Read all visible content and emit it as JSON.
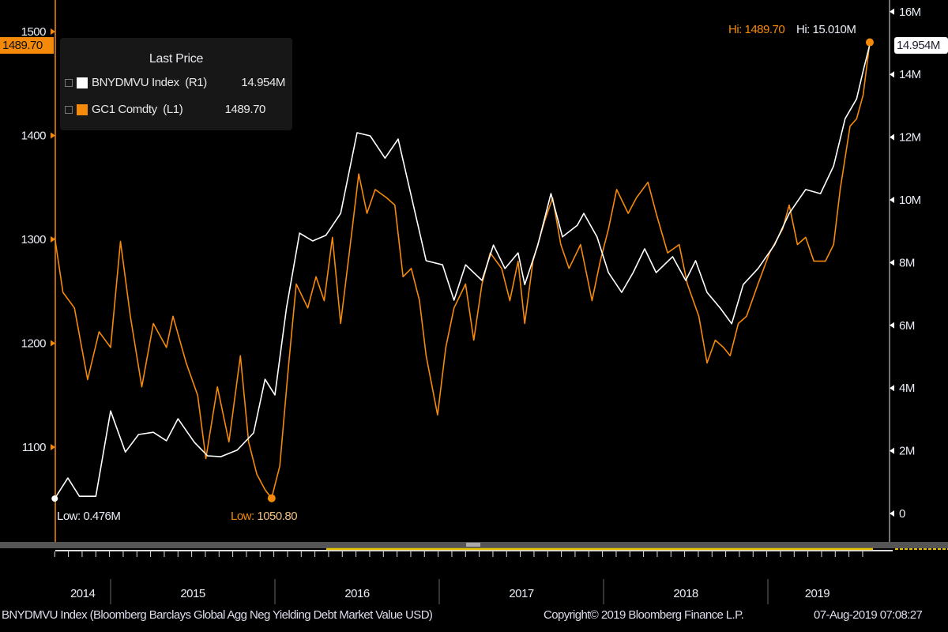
{
  "chart_data": {
    "type": "line",
    "legend": {
      "title": "Last Price",
      "placement": "top-left",
      "entries": [
        {
          "name": "BNYDMVU Index",
          "axis": "(R1)",
          "last": "14.954M",
          "color": "#ffffff"
        },
        {
          "name": "GC1 Comdty",
          "axis": "(L1)",
          "last": "1489.70",
          "color": "#f58a0a"
        }
      ]
    },
    "left_axis": {
      "ticks": [
        "1100",
        "1200",
        "1300",
        "1400",
        "1500"
      ],
      "tick_values": [
        1100,
        1200,
        1300,
        1400,
        1500
      ],
      "range": [
        1000,
        1530
      ],
      "color": "#f58a0a"
    },
    "right_axis": {
      "ticks": [
        "0",
        "2M",
        "4M",
        "6M",
        "8M",
        "10M",
        "12M",
        "14M",
        "16M"
      ],
      "tick_values": [
        0,
        2,
        4,
        6,
        8,
        10,
        12,
        14,
        16
      ],
      "range": [
        -1,
        16.5
      ],
      "unit": "M USD"
    },
    "x_axis": {
      "labels": [
        "2014",
        "2015",
        "2016",
        "2017",
        "2018",
        "2019"
      ],
      "label_positions": [
        2014.83,
        2015.5,
        2016.5,
        2017.5,
        2018.5,
        2019.3
      ],
      "year_boundaries": [
        2015,
        2016,
        2017,
        2018,
        2019
      ],
      "range": [
        2014.66,
        2019.62
      ]
    },
    "last_price_tags": {
      "left": "1489.70",
      "right": "14.954M"
    },
    "annotations": {
      "gold_high": "Hi: 1489.70",
      "index_high": "Hi: 15.010M",
      "index_low": "Low: 0.476M",
      "gold_low_prefix": "Low: ",
      "gold_low_value": "1050.80"
    },
    "series": [
      {
        "name": "GC1 Comdty",
        "axis": "left",
        "color": "#f58a0a",
        "x": [
          2014.66,
          2014.71,
          2014.78,
          2014.86,
          2014.93,
          2015.0,
          2015.06,
          2015.12,
          2015.19,
          2015.26,
          2015.34,
          2015.38,
          2015.46,
          2015.53,
          2015.58,
          2015.65,
          2015.72,
          2015.79,
          2015.84,
          2015.89,
          2015.94,
          2015.98,
          2016.03,
          2016.08,
          2016.13,
          2016.2,
          2016.25,
          2016.3,
          2016.35,
          2016.4,
          2016.47,
          2016.51,
          2016.56,
          2016.61,
          2016.68,
          2016.73,
          2016.78,
          2016.83,
          2016.88,
          2016.92,
          2016.99,
          2017.04,
          2017.09,
          2017.16,
          2017.21,
          2017.26,
          2017.31,
          2017.38,
          2017.43,
          2017.48,
          2017.52,
          2017.57,
          2017.64,
          2017.69,
          2017.74,
          2017.79,
          2017.86,
          2017.93,
          2017.98,
          2018.03,
          2018.08,
          2018.15,
          2018.2,
          2018.27,
          2018.32,
          2018.39,
          2018.46,
          2018.51,
          2018.58,
          2018.63,
          2018.68,
          2018.73,
          2018.77,
          2018.82,
          2018.87,
          2018.94,
          2019.01,
          2019.09,
          2019.13,
          2019.18,
          2019.23,
          2019.28,
          2019.35,
          2019.4,
          2019.44,
          2019.5,
          2019.54,
          2019.58,
          2019.62
        ],
        "y": [
          1302,
          1249,
          1234,
          1165,
          1211,
          1196,
          1298,
          1226,
          1158,
          1219,
          1196,
          1226,
          1181,
          1150,
          1089,
          1158,
          1105,
          1188,
          1105,
          1074,
          1059,
          1050.8,
          1082,
          1173,
          1257,
          1234,
          1264,
          1241,
          1302,
          1219,
          1310,
          1363,
          1325,
          1348,
          1340,
          1333,
          1264,
          1272,
          1241,
          1188,
          1131,
          1196,
          1234,
          1257,
          1203,
          1257,
          1287,
          1272,
          1241,
          1279,
          1219,
          1279,
          1317,
          1340,
          1295,
          1272,
          1295,
          1241,
          1279,
          1310,
          1348,
          1325,
          1340,
          1355,
          1325,
          1287,
          1295,
          1257,
          1226,
          1181,
          1203,
          1196,
          1188,
          1219,
          1226,
          1257,
          1287,
          1310,
          1333,
          1295,
          1302,
          1279,
          1279,
          1295,
          1348,
          1409,
          1416,
          1439,
          1489.7
        ]
      },
      {
        "name": "BNYDMVU Index",
        "axis": "right",
        "color": "#ffffff",
        "x": [
          2014.66,
          2014.74,
          2014.81,
          2014.91,
          2015.0,
          2015.09,
          2015.17,
          2015.26,
          2015.34,
          2015.41,
          2015.51,
          2015.59,
          2015.67,
          2015.77,
          2015.87,
          2015.94,
          2016.0,
          2016.07,
          2016.15,
          2016.23,
          2016.31,
          2016.4,
          2016.5,
          2016.58,
          2016.67,
          2016.75,
          2016.92,
          2017.02,
          2017.09,
          2017.16,
          2017.26,
          2017.33,
          2017.4,
          2017.48,
          2017.52,
          2017.6,
          2017.68,
          2017.75,
          2017.84,
          2017.88,
          2017.96,
          2018.03,
          2018.11,
          2018.18,
          2018.25,
          2018.32,
          2018.42,
          2018.5,
          2018.56,
          2018.63,
          2018.71,
          2018.78,
          2018.85,
          2018.94,
          2019.04,
          2019.13,
          2019.23,
          2019.32,
          2019.4,
          2019.47,
          2019.54,
          2019.58,
          2019.62
        ],
        "y": [
          0.476,
          1.13,
          0.55,
          0.55,
          3.27,
          1.96,
          2.52,
          2.59,
          2.32,
          3.02,
          2.27,
          1.84,
          1.81,
          2.02,
          2.57,
          4.28,
          3.78,
          6.55,
          8.94,
          8.69,
          8.87,
          9.57,
          12.14,
          12.04,
          11.33,
          11.94,
          8.06,
          7.93,
          6.8,
          7.93,
          7.43,
          8.56,
          7.81,
          8.31,
          7.3,
          8.56,
          10.2,
          8.82,
          9.19,
          9.57,
          8.82,
          7.68,
          7.05,
          7.68,
          8.44,
          7.68,
          8.19,
          7.43,
          8.06,
          7.05,
          6.55,
          6.05,
          7.3,
          7.81,
          8.56,
          9.57,
          10.33,
          10.2,
          11.08,
          12.59,
          13.22,
          14.11,
          14.954
        ]
      }
    ]
  },
  "footer": {
    "description": "BNYDMVU Index (Bloomberg Barclays Global Agg Neg Yielding Debt Market Value USD)",
    "copyright": "Copyright© 2019 Bloomberg Finance L.P.",
    "timestamp": "07-Aug-2019 07:08:27"
  }
}
